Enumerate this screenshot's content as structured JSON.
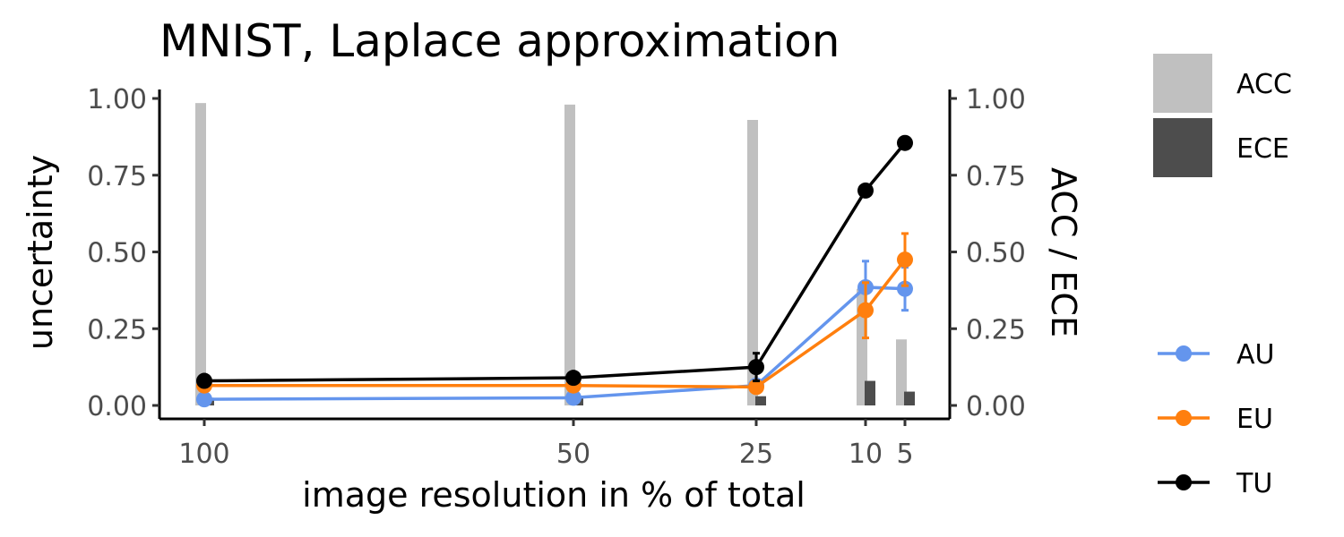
{
  "chart_data": {
    "type": "line",
    "title": "MNIST, Laplace approximation",
    "xlabel": "image resolution in % of total",
    "ylabel": "uncertainty",
    "y2label": "ACC / ECE",
    "x_ticks": [
      100,
      50,
      25,
      10,
      5
    ],
    "y_ticks": [
      "0.00",
      "0.25",
      "0.50",
      "0.75",
      "1.00"
    ],
    "y2_ticks": [
      "0.00",
      "0.25",
      "0.50",
      "0.75",
      "1.00"
    ],
    "ylim": [
      -0.05,
      1.03
    ],
    "x_axis": "reversed resolution, log-like spacing",
    "grid": false,
    "legend_position": "right",
    "bars": [
      {
        "name": "ACC",
        "color": "#c0c0c0",
        "values": [
          0.985,
          0.98,
          0.93,
          0.38,
          0.215
        ]
      },
      {
        "name": "ECE",
        "color": "#4d4d4d",
        "values": [
          0.025,
          0.03,
          0.03,
          0.08,
          0.045
        ]
      }
    ],
    "series": [
      {
        "name": "AU",
        "color": "#6495ed",
        "x": [
          100,
          50,
          25,
          10,
          5
        ],
        "values": [
          0.02,
          0.025,
          0.065,
          0.385,
          0.38
        ],
        "err": [
          0,
          0,
          0,
          0.085,
          0.07
        ]
      },
      {
        "name": "EU",
        "color": "#ff7f0e",
        "x": [
          100,
          50,
          25,
          10,
          5
        ],
        "values": [
          0.065,
          0.065,
          0.06,
          0.31,
          0.475
        ],
        "err": [
          0.015,
          0.01,
          0.01,
          0.09,
          0.085
        ]
      },
      {
        "name": "TU",
        "color": "#000000",
        "x": [
          100,
          50,
          25,
          10,
          5
        ],
        "values": [
          0.08,
          0.09,
          0.125,
          0.7,
          0.855
        ],
        "err": [
          0,
          0,
          0.045,
          0,
          0
        ]
      }
    ]
  }
}
